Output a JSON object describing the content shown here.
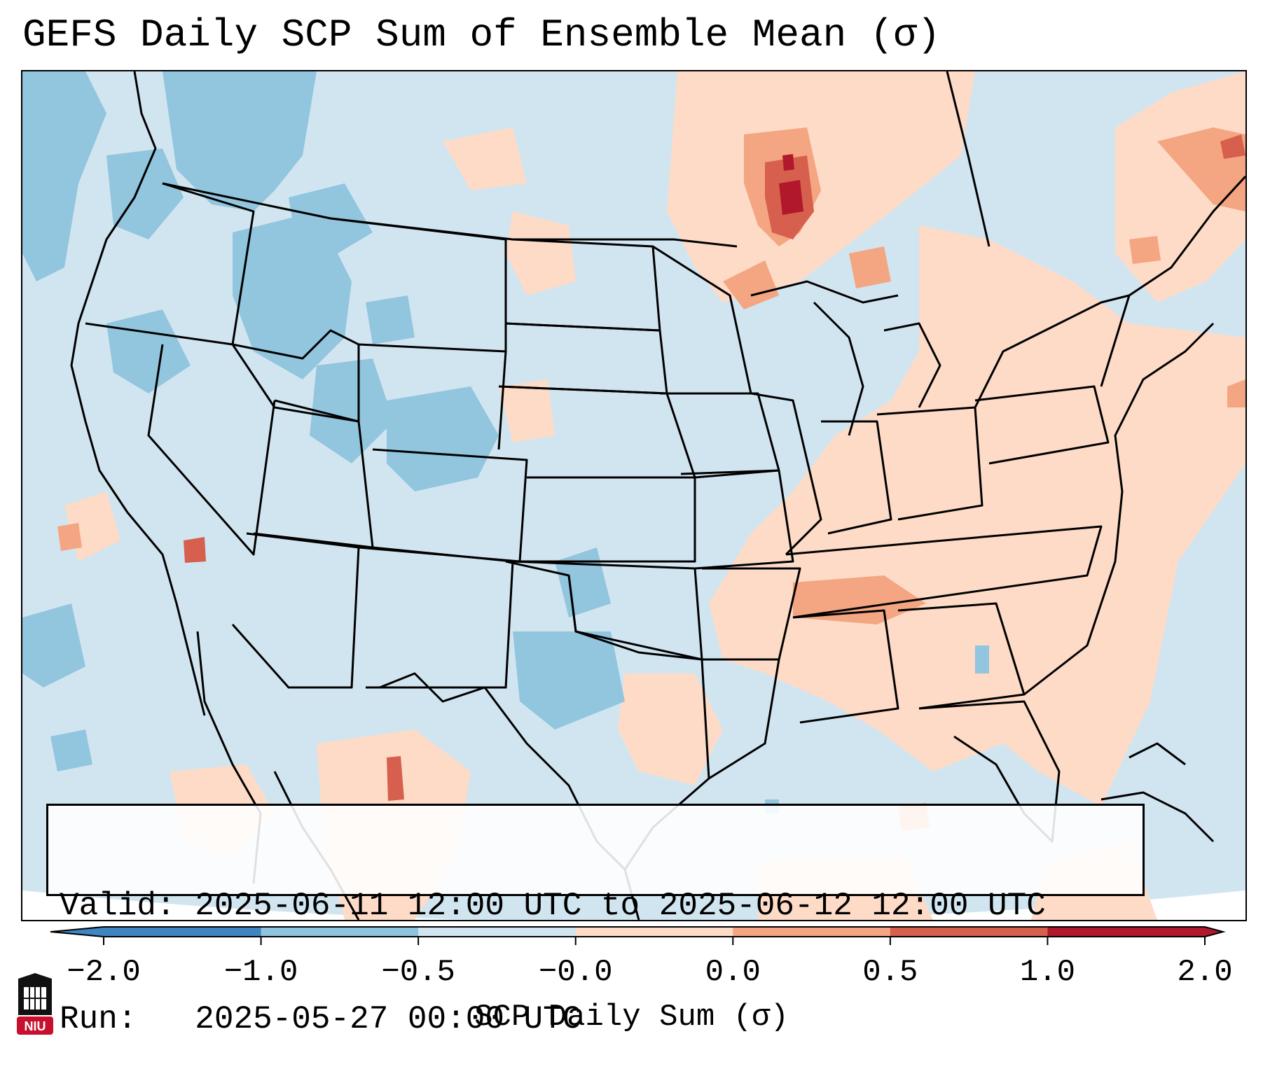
{
  "title": "GEFS Daily SCP Sum of Ensemble Mean (σ)",
  "info": {
    "valid_label": "Valid:",
    "valid_value": "2025-06-11 12:00 UTC to 2025-06-12 12:00 UTC",
    "run_label": "Run:",
    "run_value": "2025-05-27 00:00 UTC"
  },
  "colorbar": {
    "label": "SCP Daily Sum (σ)",
    "ticks": [
      "−2.0",
      "−1.0",
      "−0.5",
      "−0.0",
      "0.0",
      "0.5",
      "1.0",
      "2.0"
    ],
    "colors": [
      "#3f85c2",
      "#8ec4de",
      "#d1e5f0",
      "#f7f7f7",
      "#fddbc7",
      "#f4a582",
      "#d6604d",
      "#b2182b"
    ]
  },
  "palette": {
    "neutral": "#d1e5f0",
    "light_blue": "#92c5de",
    "light_red": "#fddbc7",
    "mid_red": "#f4a582",
    "red": "#d6604d",
    "dark_red": "#b2182b",
    "background": "#ffffff"
  },
  "logo": {
    "text": "NIU",
    "color": "#c8102e"
  }
}
